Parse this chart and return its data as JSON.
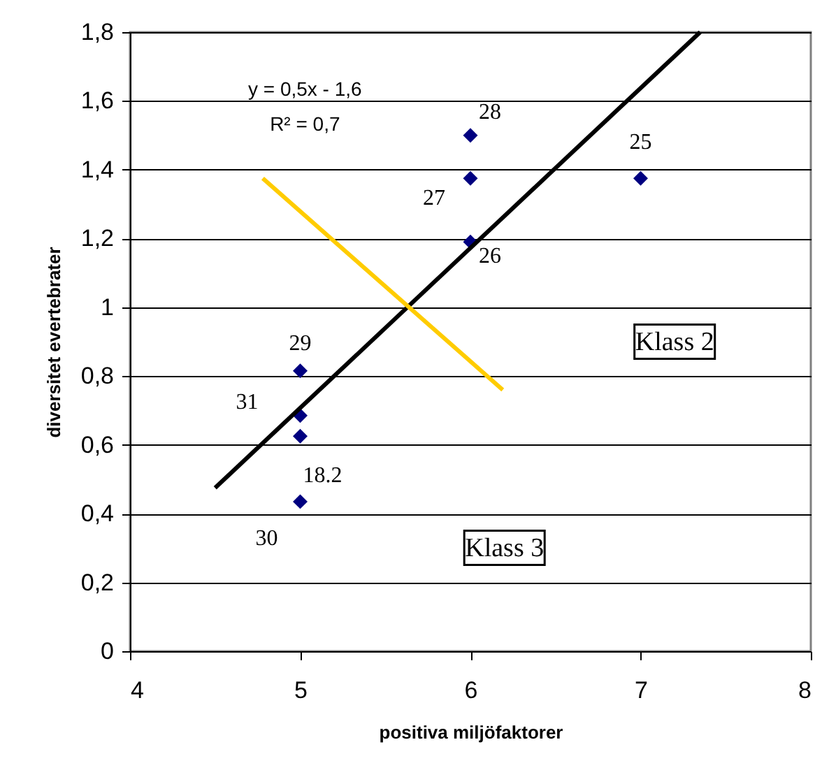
{
  "chart_data": {
    "type": "scatter",
    "xlabel": "positiva miljöfaktorer",
    "ylabel": "diversitet evertebrater",
    "xlim": [
      4,
      8
    ],
    "xticks": [
      4,
      5,
      6,
      7,
      8
    ],
    "ylim": [
      0,
      1.8
    ],
    "yticks": [
      0,
      {
        "value": 0.2,
        "label": "0,2"
      },
      {
        "value": 0.4,
        "label": "0,4"
      },
      {
        "value": 0.6,
        "label": "0,6"
      },
      {
        "value": 0.8,
        "label": "0,8"
      },
      1,
      {
        "value": 1.2,
        "label": "1,2"
      },
      {
        "value": 1.4,
        "label": "1,4"
      },
      {
        "value": 1.6,
        "label": "1,6"
      },
      {
        "value": 1.8,
        "label": "1,8"
      }
    ],
    "grid": "y",
    "series": [
      {
        "marker": "diamond",
        "color": "#000080",
        "x": [
          5,
          5,
          5,
          5,
          6,
          6,
          6,
          7
        ],
        "values": [
          0.815,
          0.685,
          0.625,
          0.435,
          1.5,
          1.375,
          1.19,
          1.375
        ]
      },
      {
        "type": "line",
        "color": "#000000",
        "line_style": "solid",
        "x": [
          4.5,
          7.35
        ],
        "values": [
          0.475,
          1.8
        ]
      },
      {
        "type": "line",
        "color": "#ffcc00",
        "line_style": "solid",
        "x": [
          4.78,
          6.19
        ],
        "values": [
          1.375,
          0.76
        ]
      }
    ],
    "annotations": [
      {
        "text": "29",
        "x": 5,
        "y": 0.815
      },
      {
        "text": "31",
        "x": 5,
        "y": 0.685
      },
      {
        "text": "18.2",
        "x": 5,
        "y": 0.625
      },
      {
        "text": "30",
        "x": 5,
        "y": 0.435
      },
      {
        "text": "28",
        "x": 6,
        "y": 1.5
      },
      {
        "text": "27",
        "x": 6,
        "y": 1.375
      },
      {
        "text": "26",
        "x": 6,
        "y": 1.19
      },
      {
        "text": "25",
        "x": 7,
        "y": 1.375
      },
      "y = 0,5x - 1,6",
      "R² = 0,7",
      "Klass 2",
      "Klass 3"
    ]
  }
}
